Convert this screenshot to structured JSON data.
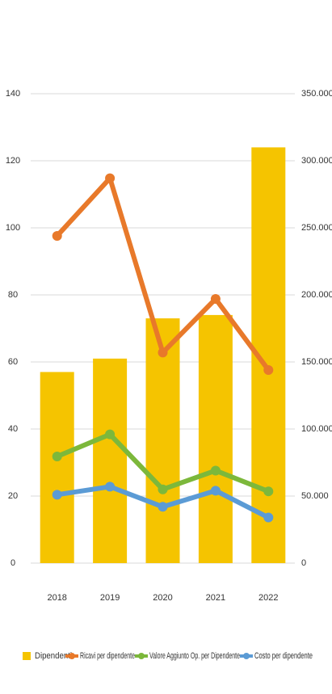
{
  "chart_data": {
    "type": "bar",
    "categories": [
      "2018",
      "2019",
      "2020",
      "2021",
      "2022"
    ],
    "series": [
      {
        "name": "Dipendenti",
        "type": "bar",
        "color": "#f5c400",
        "axis": "y",
        "values": [
          57,
          61,
          73,
          74,
          124
        ]
      },
      {
        "name": "Ricavi per dipendente",
        "type": "line",
        "color": "#e8792a",
        "axis": "y2",
        "values": [
          244000,
          287000,
          157000,
          197000,
          144000
        ]
      },
      {
        "name": "Valore Aggiunto Op. per Dipendente",
        "type": "line",
        "color": "#7cb83b",
        "axis": "y2",
        "values": [
          79500,
          96000,
          55000,
          69000,
          53500
        ]
      },
      {
        "name": "Costo per dipendente",
        "type": "line",
        "color": "#5b9bd5",
        "axis": "y2",
        "values": [
          51000,
          57000,
          42000,
          54000,
          34000
        ]
      }
    ],
    "ylim": [
      0,
      140
    ],
    "yticks": [
      0,
      20,
      40,
      60,
      80,
      100,
      120,
      140
    ],
    "y2lim": [
      0,
      350000
    ],
    "y2ticks": [
      0,
      {
        "value": 50000,
        "label": "50.000"
      },
      {
        "value": 100000,
        "label": "100.000"
      },
      {
        "value": 150000,
        "label": "150.000"
      },
      {
        "value": 200000,
        "label": "200.000"
      },
      {
        "value": 250000,
        "label": "250.000"
      },
      {
        "value": 300000,
        "label": "300.000"
      },
      {
        "value": 350000,
        "label": "350.000"
      }
    ],
    "grid": true,
    "legend": "bottom"
  }
}
